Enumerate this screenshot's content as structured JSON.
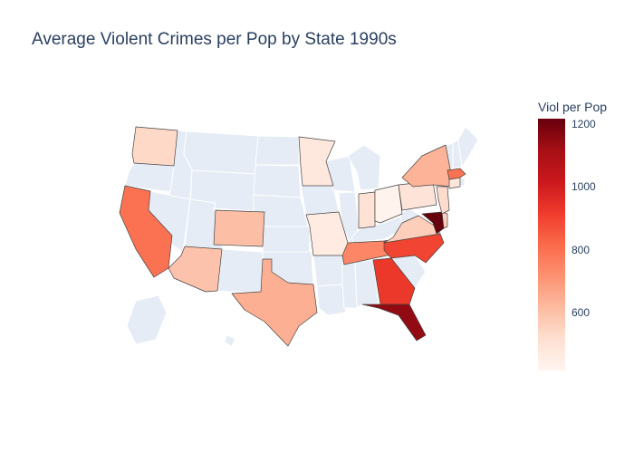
{
  "title": "Average Violent Crimes per Pop by State 1990s",
  "colorbar": {
    "title": "Viol per Pop",
    "min": 420,
    "max": 1220,
    "ticks": [
      {
        "value": 1200,
        "label": "1200"
      },
      {
        "value": 1000,
        "label": "1000"
      },
      {
        "value": 800,
        "label": "800"
      },
      {
        "value": 600,
        "label": "600"
      }
    ]
  },
  "colors": {
    "no_data": "#e5ecf6",
    "scale": [
      "#fff5f0",
      "#fee0d2",
      "#fcbba1",
      "#fc9272",
      "#fb6a4a",
      "#ef3b2c",
      "#cb181d",
      "#a50f15",
      "#67000d"
    ]
  },
  "chart_data": {
    "type": "choropleth",
    "title": "Average Violent Crimes per Pop by State 1990s",
    "scope": "usa",
    "colorbar_title": "Viol per Pop",
    "z_range": [
      420,
      1220
    ],
    "states": [
      {
        "state": "MD",
        "value": 1220
      },
      {
        "state": "FL",
        "value": 1150
      },
      {
        "state": "GA",
        "value": 930
      },
      {
        "state": "NC",
        "value": 900
      },
      {
        "state": "CA",
        "value": 800
      },
      {
        "state": "MA",
        "value": 800
      },
      {
        "state": "TN",
        "value": 750
      },
      {
        "state": "TX",
        "value": 650
      },
      {
        "state": "NY",
        "value": 640
      },
      {
        "state": "CO",
        "value": 610
      },
      {
        "state": "AZ",
        "value": 600
      },
      {
        "state": "VA",
        "value": 570
      },
      {
        "state": "DE",
        "value": 560
      },
      {
        "state": "WA",
        "value": 540
      },
      {
        "state": "NJ",
        "value": 530
      },
      {
        "state": "IN",
        "value": 510
      },
      {
        "state": "PA",
        "value": 500
      },
      {
        "state": "CT",
        "value": 490
      },
      {
        "state": "MN",
        "value": 480
      },
      {
        "state": "MO",
        "value": 470
      },
      {
        "state": "OH",
        "value": 430
      }
    ]
  }
}
